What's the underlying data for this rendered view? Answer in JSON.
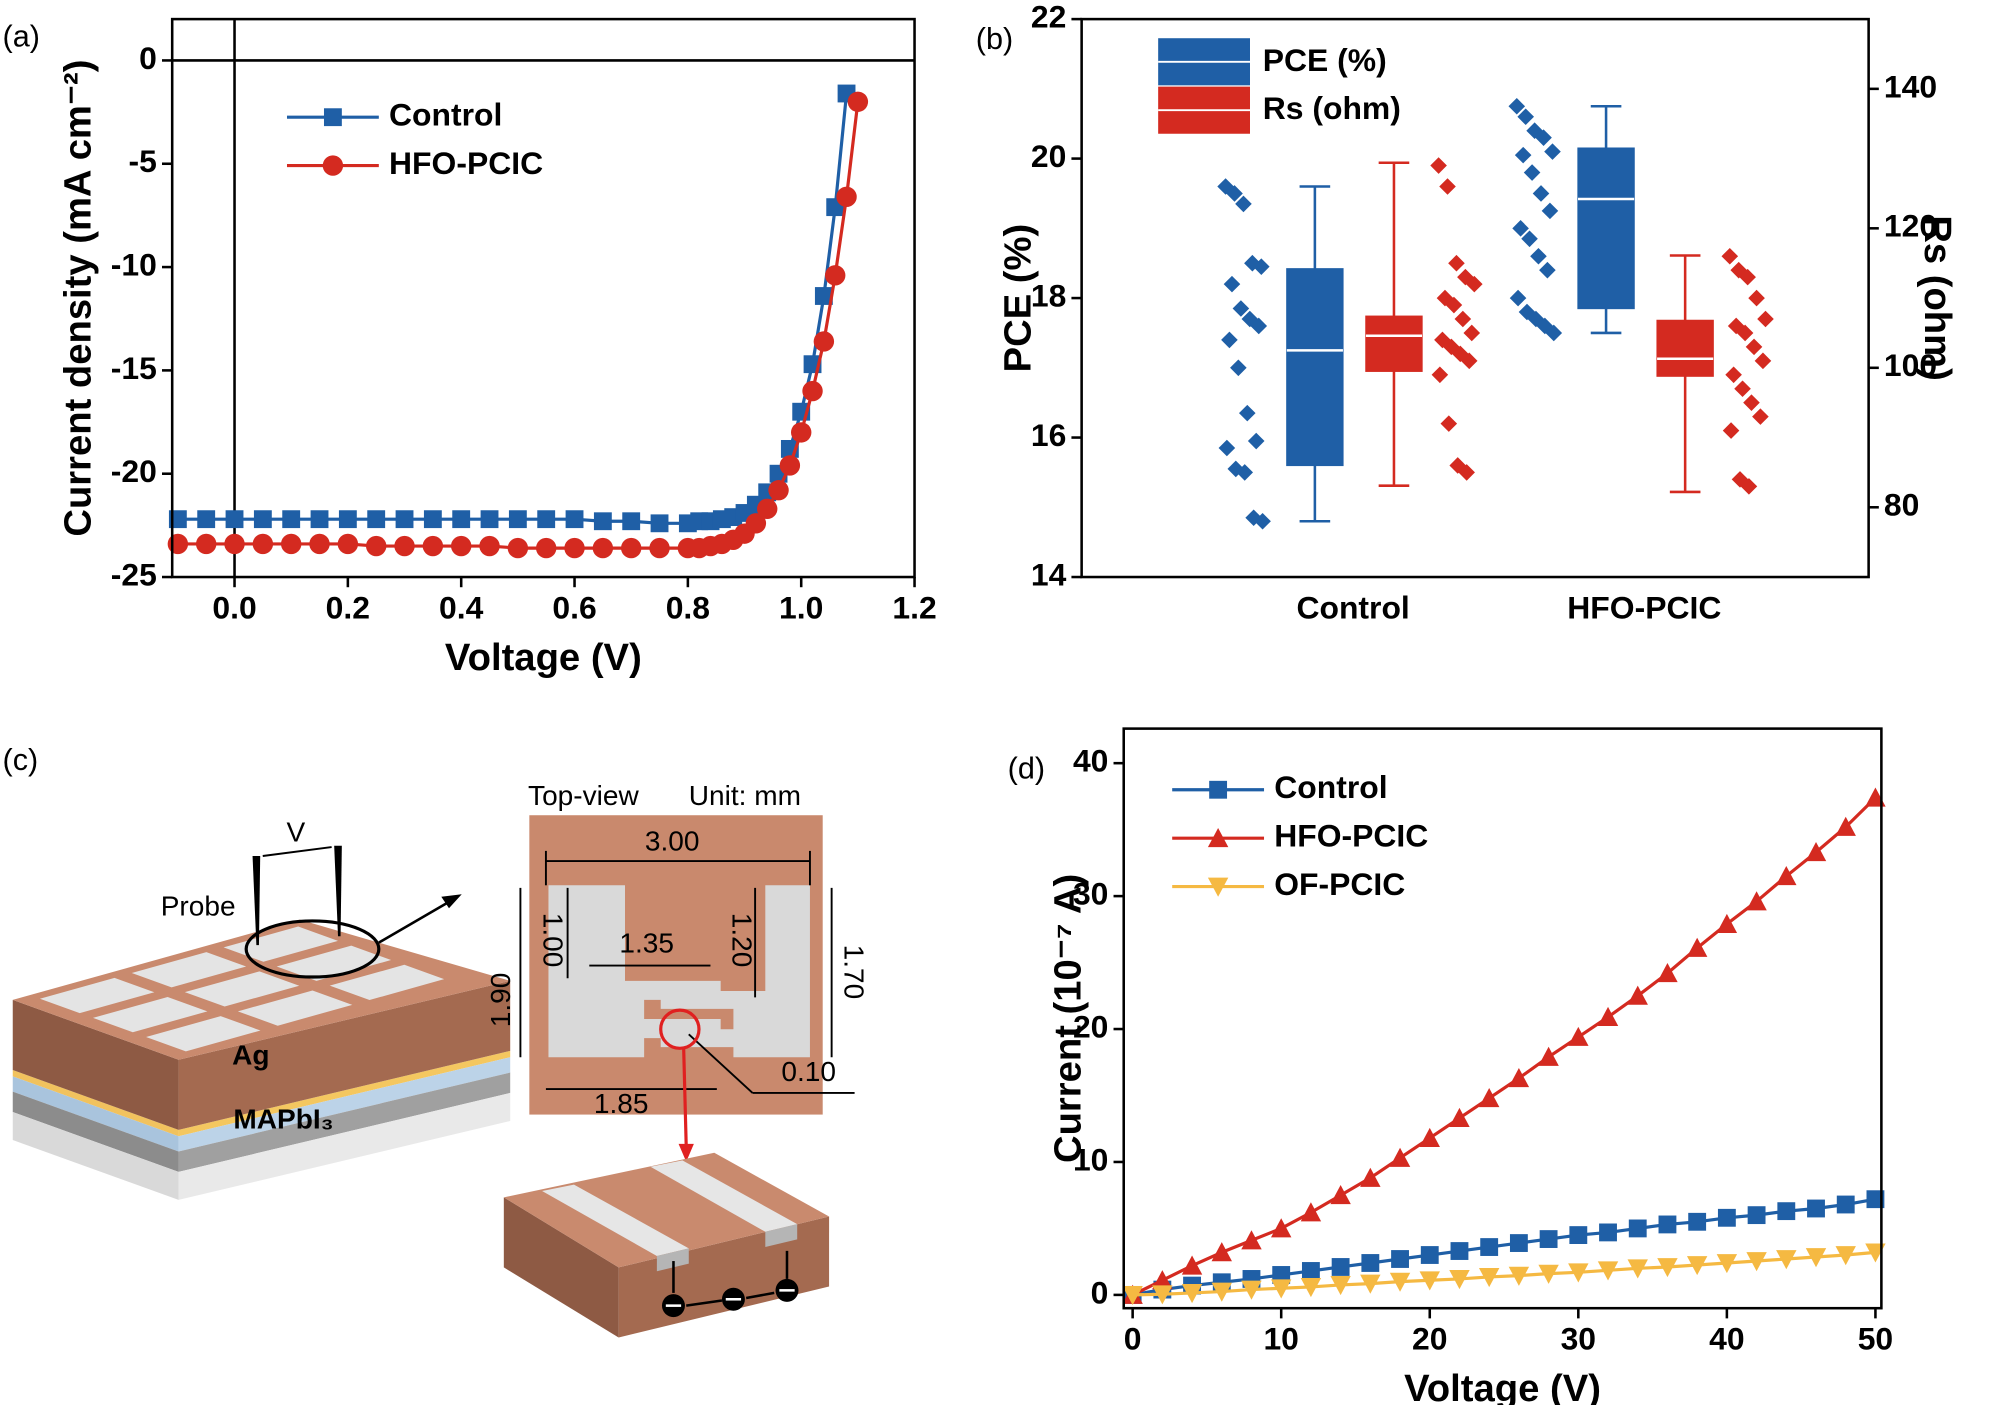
{
  "chart_data": [
    {
      "type": "line",
      "panel_label": "(a)",
      "x_label": "Voltage (V)",
      "y_label": "Current density (mA cm⁻²)",
      "xlim": [
        -0.11,
        1.2
      ],
      "xticks": [
        {
          "value": 0,
          "label": "0.0"
        },
        0.2,
        0.4,
        0.6,
        0.8,
        {
          "value": 1,
          "label": "1.0"
        },
        1.2
      ],
      "ylim": [
        -25,
        2
      ],
      "yticks": [
        0,
        -5,
        -10,
        -15,
        -20,
        -25
      ],
      "zero_lines": true,
      "legend": "upper left",
      "series": [
        {
          "name": "Control",
          "color": "#1f5fa6",
          "marker": "square",
          "x": [
            -0.1,
            -0.05,
            0,
            0.05,
            0.1,
            0.15,
            0.2,
            0.25,
            0.3,
            0.35,
            0.4,
            0.45,
            0.5,
            0.55,
            0.6,
            0.65,
            0.7,
            0.75,
            0.8,
            0.82,
            0.84,
            0.86,
            0.88,
            0.9,
            0.92,
            0.94,
            0.96,
            0.98,
            1.0,
            1.02,
            1.04,
            1.06,
            1.08
          ],
          "values": [
            -22.2,
            -22.2,
            -22.2,
            -22.2,
            -22.2,
            -22.2,
            -22.2,
            -22.2,
            -22.2,
            -22.2,
            -22.2,
            -22.2,
            -22.2,
            -22.2,
            -22.2,
            -22.3,
            -22.3,
            -22.4,
            -22.4,
            -22.3,
            -22.3,
            -22.2,
            -22.1,
            -21.9,
            -21.5,
            -20.9,
            -20.0,
            -18.8,
            -17.0,
            -14.7,
            -11.4,
            -7.1,
            -1.6
          ]
        },
        {
          "name": "HFO-PCIC",
          "color": "#d42a20",
          "marker": "circle",
          "x": [
            -0.1,
            -0.05,
            0,
            0.05,
            0.1,
            0.15,
            0.2,
            0.25,
            0.3,
            0.35,
            0.4,
            0.45,
            0.5,
            0.55,
            0.6,
            0.65,
            0.7,
            0.75,
            0.8,
            0.82,
            0.84,
            0.86,
            0.88,
            0.9,
            0.92,
            0.94,
            0.96,
            0.98,
            1.0,
            1.02,
            1.04,
            1.06,
            1.08,
            1.1
          ],
          "values": [
            -23.4,
            -23.4,
            -23.4,
            -23.4,
            -23.4,
            -23.4,
            -23.4,
            -23.5,
            -23.5,
            -23.5,
            -23.5,
            -23.5,
            -23.6,
            -23.6,
            -23.6,
            -23.6,
            -23.6,
            -23.6,
            -23.6,
            -23.6,
            -23.5,
            -23.4,
            -23.2,
            -22.9,
            -22.4,
            -21.7,
            -20.8,
            -19.6,
            -18.0,
            -16.0,
            -13.6,
            -10.4,
            -6.6,
            -2.0
          ]
        }
      ]
    },
    {
      "type": "box",
      "panel_label": "(b)",
      "categories": [
        "Control",
        "HFO-PCIC"
      ],
      "y_label": "PCE (%)",
      "y2_label": "Rs (ohm)",
      "ylim": [
        14,
        22
      ],
      "yticks": [
        14,
        16,
        18,
        20,
        22
      ],
      "y2lim": [
        70,
        150
      ],
      "y2ticks": [
        80,
        100,
        120,
        140
      ],
      "legend": "upper left",
      "series": [
        {
          "name": "PCE (%)",
          "color": "#1f5fa6",
          "boxes": [
            {
              "min": 14.8,
              "q1": 15.6,
              "median": 17.25,
              "q3": 18.42,
              "max": 19.6,
              "points": [
                19.6,
                19.5,
                19.35,
                18.5,
                18.45,
                18.2,
                17.85,
                17.7,
                17.6,
                17.4,
                17.0,
                16.35,
                15.95,
                15.85,
                15.55,
                15.5,
                14.85,
                14.8
              ]
            },
            {
              "min": 17.5,
              "q1": 17.85,
              "median": 19.42,
              "q3": 20.15,
              "max": 20.75,
              "points": [
                20.75,
                20.6,
                20.4,
                20.3,
                20.1,
                20.05,
                19.8,
                19.5,
                19.25,
                19.0,
                18.85,
                18.6,
                18.4,
                18.0,
                17.8,
                17.7,
                17.6,
                17.5
              ]
            }
          ]
        },
        {
          "name": "Rs (ohm)",
          "color": "#d42a20",
          "axis": "y2",
          "boxes": [
            {
              "min": 83.1,
              "q1": 99.5,
              "median": 104.6,
              "q3": 107.4,
              "max": 129.4,
              "points": [
                129,
                126,
                115,
                113,
                112,
                110,
                109,
                107,
                105,
                104,
                103,
                102,
                101,
                99,
                92,
                86,
                85
              ]
            },
            {
              "min": 82.2,
              "q1": 98.8,
              "median": 101.3,
              "q3": 106.8,
              "max": 116.1,
              "points": [
                116,
                114,
                113,
                110,
                107,
                106,
                105,
                103,
                101,
                99,
                97,
                95,
                93,
                91,
                84,
                83
              ]
            }
          ]
        }
      ]
    },
    {
      "type": "line",
      "panel_label": "(d)",
      "x_label": "Voltage (V)",
      "y_label": "Current (10⁻⁷ A)",
      "xlim": [
        -0.6,
        50.4
      ],
      "xticks": [
        0,
        10,
        20,
        30,
        40,
        50
      ],
      "ylim": [
        -1,
        42.6
      ],
      "yticks": [
        0,
        10,
        20,
        30,
        40
      ],
      "legend": "upper left",
      "x": [
        0,
        2,
        4,
        6,
        8,
        10,
        12,
        14,
        16,
        18,
        20,
        22,
        24,
        26,
        28,
        30,
        32,
        34,
        36,
        38,
        40,
        42,
        44,
        46,
        48,
        50
      ],
      "series": [
        {
          "name": "Control",
          "color": "#1f5fa6",
          "marker": "square",
          "values": [
            0,
            0.4,
            0.7,
            0.95,
            1.2,
            1.5,
            1.8,
            2.1,
            2.4,
            2.7,
            3.0,
            3.3,
            3.6,
            3.9,
            4.2,
            4.5,
            4.7,
            5.0,
            5.3,
            5.5,
            5.8,
            6.0,
            6.3,
            6.5,
            6.8,
            7.2
          ]
        },
        {
          "name": "HFO-PCIC",
          "color": "#d42a20",
          "marker": "triangle",
          "values": [
            0,
            1.1,
            2.2,
            3.2,
            4.1,
            5.0,
            6.2,
            7.5,
            8.8,
            10.3,
            11.8,
            13.3,
            14.8,
            16.3,
            17.9,
            19.4,
            20.9,
            22.5,
            24.2,
            26.1,
            27.9,
            29.6,
            31.5,
            33.3,
            35.2,
            37.4
          ]
        },
        {
          "name": "OF-PCIC",
          "color": "#f5b942",
          "marker": "triangle-down",
          "values": [
            0,
            0.05,
            0.15,
            0.25,
            0.4,
            0.5,
            0.6,
            0.75,
            0.85,
            1.0,
            1.1,
            1.2,
            1.35,
            1.45,
            1.6,
            1.7,
            1.85,
            2.0,
            2.1,
            2.25,
            2.4,
            2.55,
            2.7,
            2.85,
            3.0,
            3.2
          ]
        }
      ]
    }
  ],
  "diagram": {
    "panel_label": "(c)",
    "voltage": "V",
    "probe": "Probe",
    "top_layer": "Ag",
    "absorber": "MAPbI₃",
    "view": "Top-view",
    "unit": "Unit: mm",
    "dimensions": [
      "3.00",
      "1.00",
      "1.35",
      "1.20",
      "1.70",
      "1.90",
      "1.85",
      "0.10"
    ]
  }
}
